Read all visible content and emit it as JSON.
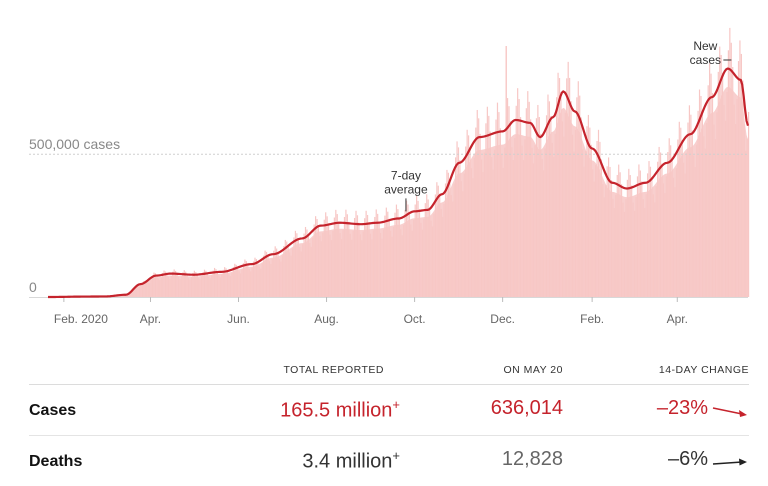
{
  "colors": {
    "bars": "#f7c7c5",
    "line": "#c5232c",
    "cases_text": "#c5232c",
    "deaths_text": "#333333",
    "deaths_day_text": "#666666",
    "gridline": "#cfcfcf"
  },
  "chart_data": {
    "type": "bar",
    "series": [
      {
        "values": [
          {
            "d": "2020-01-22",
            "v": 0
          },
          {
            "d": "2020-02-15",
            "v": 1500
          },
          {
            "d": "2020-03-01",
            "v": 2000
          },
          {
            "d": "2020-03-15",
            "v": 8000
          },
          {
            "d": "2020-03-25",
            "v": 45000
          },
          {
            "d": "2020-04-05",
            "v": 75000
          },
          {
            "d": "2020-04-15",
            "v": 82000
          },
          {
            "d": "2020-05-01",
            "v": 78000
          },
          {
            "d": "2020-05-20",
            "v": 88000
          },
          {
            "d": "2020-06-10",
            "v": 115000
          },
          {
            "d": "2020-06-25",
            "v": 150000
          },
          {
            "d": "2020-07-15",
            "v": 205000
          },
          {
            "d": "2020-07-28",
            "v": 250000
          },
          {
            "d": "2020-08-10",
            "v": 260000
          },
          {
            "d": "2020-08-25",
            "v": 255000
          },
          {
            "d": "2020-09-05",
            "v": 260000
          },
          {
            "d": "2020-09-20",
            "v": 275000
          },
          {
            "d": "2020-10-01",
            "v": 300000
          },
          {
            "d": "2020-10-10",
            "v": 305000
          },
          {
            "d": "2020-10-20",
            "v": 360000
          },
          {
            "d": "2020-11-01",
            "v": 470000
          },
          {
            "d": "2020-11-15",
            "v": 560000
          },
          {
            "d": "2020-12-01",
            "v": 580000
          },
          {
            "d": "2020-12-10",
            "v": 620000
          },
          {
            "d": "2020-12-20",
            "v": 610000
          },
          {
            "d": "2020-12-27",
            "v": 560000
          },
          {
            "d": "2021-01-05",
            "v": 630000
          },
          {
            "d": "2021-01-12",
            "v": 720000
          },
          {
            "d": "2021-01-20",
            "v": 650000
          },
          {
            "d": "2021-02-01",
            "v": 520000
          },
          {
            "d": "2021-02-15",
            "v": 400000
          },
          {
            "d": "2021-02-25",
            "v": 380000
          },
          {
            "d": "2021-03-10",
            "v": 400000
          },
          {
            "d": "2021-03-25",
            "v": 470000
          },
          {
            "d": "2021-04-10",
            "v": 570000
          },
          {
            "d": "2021-04-25",
            "v": 700000
          },
          {
            "d": "2021-05-06",
            "v": 800000
          },
          {
            "d": "2021-05-15",
            "v": 760000
          },
          {
            "d": "2021-05-20",
            "v": 600000
          }
        ]
      }
    ],
    "ylim": [
      0,
      900000
    ],
    "yticks": [
      {
        "value": 0,
        "label": "0"
      },
      {
        "value": 500000,
        "label": "500,000 cases"
      }
    ],
    "xticks": [
      {
        "date": "2020-02-01",
        "label": "Feb. 2020"
      },
      {
        "date": "2020-04-01",
        "label": "Apr."
      },
      {
        "date": "2020-06-01",
        "label": "Jun."
      },
      {
        "date": "2020-08-01",
        "label": "Aug."
      },
      {
        "date": "2020-10-01",
        "label": "Oct."
      },
      {
        "date": "2020-12-01",
        "label": "Dec."
      },
      {
        "date": "2021-02-01",
        "label": "Feb."
      },
      {
        "date": "2021-04-01",
        "label": "Apr."
      }
    ],
    "x_range": [
      "2020-01-21",
      "2021-05-20"
    ],
    "annotations": {
      "avg_line1": "7-day",
      "avg_line2": "average",
      "avg_date": "2020-09-25",
      "new_line1": "New",
      "new_line2": "cases",
      "new_date": "2021-04-26"
    },
    "grid": "dotted line at 500,000"
  },
  "table": {
    "headers": {
      "total": "TOTAL REPORTED",
      "day": "ON MAY 20",
      "change": "14-DAY CHANGE"
    },
    "rows": [
      {
        "label": "Cases",
        "total": "165.5 million",
        "plus": "+",
        "day": "636,014",
        "change": "–23%",
        "trend": "down"
      },
      {
        "label": "Deaths",
        "total": "3.4 million",
        "plus": "+",
        "day": "12,828",
        "change": "–6%",
        "trend": "flat"
      }
    ]
  }
}
